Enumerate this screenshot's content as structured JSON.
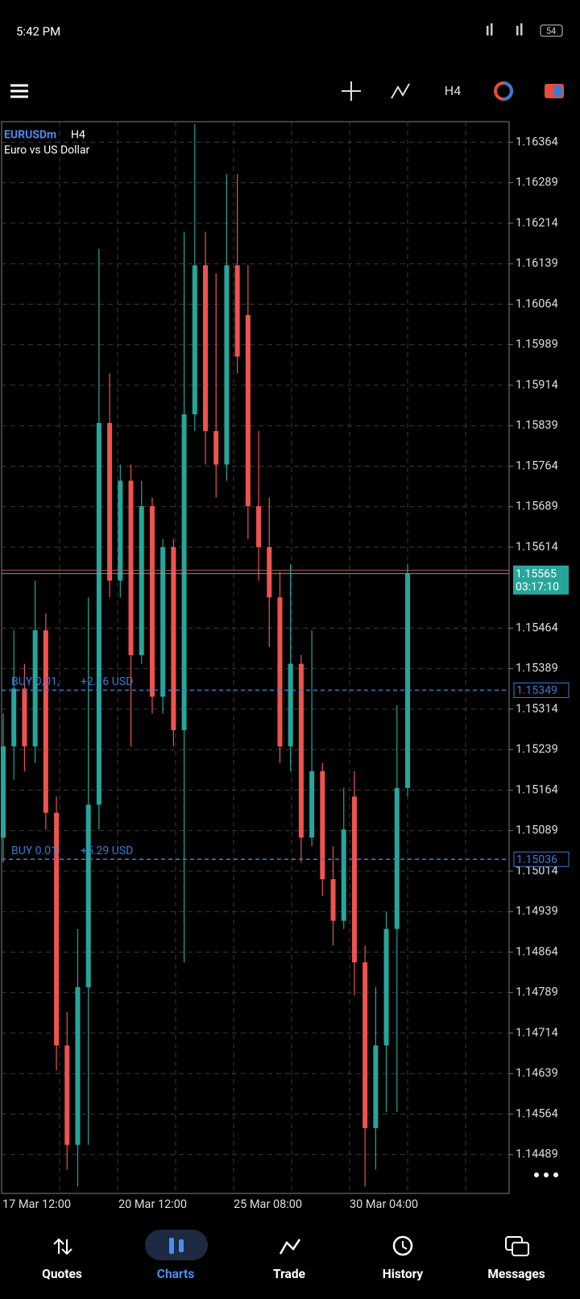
{
  "status_bar": {
    "time": "5:42 PM",
    "battery": "54"
  },
  "toolbar": {
    "timeframe": "H4"
  },
  "chart_data": {
    "type": "candlestick",
    "symbol": "EURUSDm",
    "timeframe": "H4",
    "description": "Euro vs US Dollar",
    "up_color": "#26a69a",
    "down_color": "#ef5350",
    "open": [
      1.15076,
      1.15245,
      1.15352,
      1.15245,
      1.1546,
      1.15122,
      1.14691,
      1.14507,
      1.14799,
      1.15137,
      1.15844,
      1.15552,
      1.15737,
      1.15414,
      1.1569,
      1.15337,
      1.15614,
      1.15275,
      1.1586,
      1.16136,
      1.15829,
      1.15767,
      1.16136,
      1.16044,
      1.1569,
      1.15614,
      1.15521,
      1.15245,
      1.15398,
      1.15076,
      1.15199,
      1.14999,
      1.14922,
      1.15152,
      1.14845,
      1.14538,
      1.14691,
      1.14907,
      1.15168
    ],
    "high": [
      1.15306,
      1.1546,
      1.15398,
      1.15552,
      1.15491,
      1.15152,
      1.14753,
      1.14907,
      1.15521,
      1.16167,
      1.15936,
      1.15767,
      1.15767,
      1.15737,
      1.15706,
      1.15629,
      1.15629,
      1.16198,
      1.16397,
      1.16198,
      1.16121,
      1.16305,
      1.16305,
      1.16136,
      1.15829,
      1.15706,
      1.15568,
      1.15583,
      1.15414,
      1.1546,
      1.15214,
      1.1506,
      1.15168,
      1.15199,
      1.14876,
      1.14799,
      1.14938,
      1.15321,
      1.15583
    ],
    "low": [
      1.1503,
      1.15183,
      1.15199,
      1.15214,
      1.15091,
      1.14645,
      1.14461,
      1.1443,
      1.14507,
      1.15091,
      1.15521,
      1.15521,
      1.15245,
      1.15398,
      1.15306,
      1.15306,
      1.15245,
      1.14845,
      1.15829,
      1.15767,
      1.15706,
      1.15737,
      1.15936,
      1.15629,
      1.15552,
      1.15429,
      1.15214,
      1.15199,
      1.1503,
      1.1506,
      1.14968,
      1.14876,
      1.14907,
      1.14784,
      1.1443,
      1.14461,
      1.14568,
      1.14568,
      1.15152
    ],
    "close": [
      1.15245,
      1.15352,
      1.15245,
      1.1546,
      1.15122,
      1.14691,
      1.14507,
      1.14799,
      1.15137,
      1.15844,
      1.15552,
      1.15737,
      1.15414,
      1.1569,
      1.15337,
      1.15614,
      1.15275,
      1.1586,
      1.16136,
      1.15829,
      1.15767,
      1.16136,
      1.15967,
      1.1569,
      1.15614,
      1.15521,
      1.15245,
      1.15398,
      1.15076,
      1.15199,
      1.14999,
      1.14922,
      1.15091,
      1.14845,
      1.14538,
      1.14691,
      1.14907,
      1.15168,
      1.15565
    ],
    "ylim": [
      1.14417,
      1.16402
    ],
    "yticks": [
      1.16364,
      1.16289,
      1.16214,
      1.16139,
      1.16064,
      1.15989,
      1.15914,
      1.15839,
      1.15764,
      1.15689,
      1.15614,
      1.15464,
      1.15389,
      1.15314,
      1.15239,
      1.15164,
      1.15089,
      1.15014,
      1.14939,
      1.14864,
      1.14789,
      1.14714,
      1.14639,
      1.14564,
      1.14489
    ],
    "x_labels": [
      "17 Mar 12:00",
      "20 Mar 12:00",
      "25 Mar 08:00",
      "30 Mar 04:00"
    ],
    "current_price": 1.15565,
    "countdown": "03:17:10",
    "orders": [
      {
        "side": "BUY 0.01,",
        "profit": "+2.16 USD",
        "price": 1.15349
      },
      {
        "side": "BUY 0.01,",
        "profit": "+5.29 USD",
        "price": 1.15036
      }
    ],
    "grid": true
  },
  "nav": [
    "Quotes",
    "Charts",
    "Trade",
    "History",
    "Messages"
  ]
}
